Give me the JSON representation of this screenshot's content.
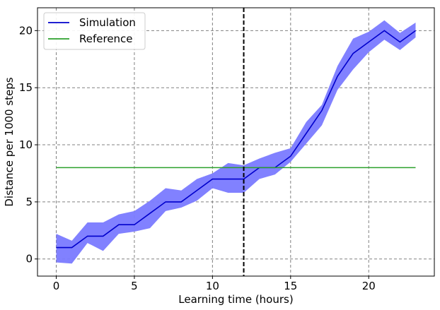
{
  "chart_data": {
    "type": "line",
    "xlabel": "Learning time (hours)",
    "ylabel": "Distance per 1000 steps",
    "xlim": [
      -1.2,
      24.2
    ],
    "ylim": [
      -1.5,
      22
    ],
    "xticks": [
      0,
      5,
      10,
      15,
      20
    ],
    "yticks": [
      0,
      5,
      10,
      15,
      20
    ],
    "xtick_labels": [
      "0",
      "5",
      "10",
      "15",
      "20"
    ],
    "ytick_labels": [
      "0",
      "5",
      "10",
      "15",
      "20"
    ],
    "grid": true,
    "legend_position": "top-left",
    "vertical_line": {
      "x": 12,
      "style": "dashed",
      "color": "#000000"
    },
    "series": [
      {
        "name": "Simulation",
        "color": "#0000cc",
        "band_color": "#7a7aff",
        "x": [
          0,
          1,
          2,
          3,
          4,
          5,
          6,
          7,
          8,
          9,
          10,
          11,
          12,
          13,
          14,
          15,
          16,
          17,
          18,
          19,
          20,
          21,
          22,
          23
        ],
        "values": [
          1,
          1,
          2,
          2,
          3,
          3,
          4,
          5,
          5,
          6,
          7,
          7,
          7,
          8,
          8,
          9,
          11,
          13,
          16,
          18,
          19,
          20,
          19,
          20
        ],
        "lower": [
          -0.3,
          -0.4,
          1.4,
          0.7,
          2.2,
          2.4,
          2.7,
          4.2,
          4.5,
          5.1,
          6.2,
          5.8,
          5.8,
          7.0,
          7.4,
          8.5,
          10.1,
          11.7,
          14.8,
          16.6,
          18.1,
          19.2,
          18.3,
          19.4
        ],
        "upper": [
          2.2,
          1.6,
          3.2,
          3.2,
          3.9,
          4.2,
          5.1,
          6.2,
          6.0,
          7.0,
          7.5,
          8.4,
          8.2,
          8.8,
          9.3,
          9.7,
          12.0,
          13.5,
          16.9,
          19.3,
          19.9,
          20.9,
          19.8,
          20.7
        ]
      },
      {
        "name": "Reference",
        "color": "#2ca02c",
        "x": [
          0,
          23
        ],
        "values": [
          8,
          8
        ]
      }
    ]
  }
}
